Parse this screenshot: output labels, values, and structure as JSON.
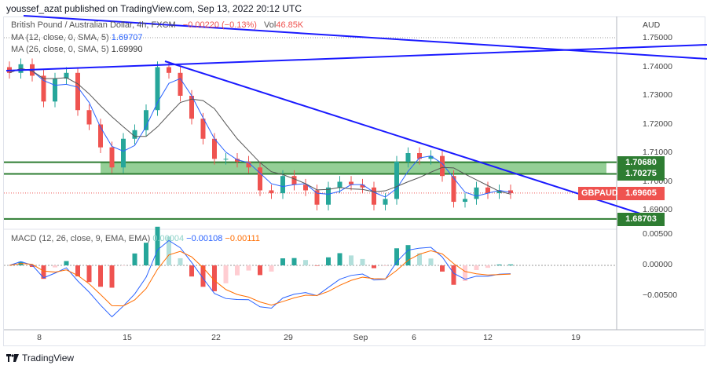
{
  "publisher_line": "youssef_azat published on TradingView.com, Sep 13, 2022 20:12 UTC",
  "legend": {
    "symbol": "British Pound / Australian Dollar, 4h, FXCM",
    "change": "−0.00220 (−0.13%)",
    "vol_label": "Vol",
    "vol": "46.85K",
    "ma1_label": "MA (12, close, 0, SMA, 5)",
    "ma1_value": "1.69707",
    "ma2_label": "MA (26, close, 0, SMA, 5)",
    "ma2_value": "1.69990",
    "macd_label": "MACD (12, 26, close, 9, EMA, EMA)",
    "macd_hist": "0.00004",
    "macd_line": "−0.00108",
    "macd_signal": "−0.00111"
  },
  "currency": "AUD",
  "price_ticks": [
    "1.75000",
    "1.74000",
    "1.73000",
    "1.72000",
    "1.71000",
    "1.70000",
    "1.69000"
  ],
  "macd_ticks": [
    "0.00500",
    "0.00000",
    "−0.00500"
  ],
  "time_ticks": [
    "8",
    "15",
    "22",
    "29",
    "Sep",
    "6",
    "12",
    "19"
  ],
  "levels": [
    {
      "label": "1.70680",
      "price": 1.7068
    },
    {
      "label": "1.70275",
      "price": 1.70275
    },
    {
      "label": "1.68703",
      "price": 1.68703
    }
  ],
  "last_price": {
    "symbol": "GBPAUD",
    "label": "1.69605",
    "price": 1.69605
  },
  "colors": {
    "up": "#26a69a",
    "down": "#ef5350",
    "ma1": "#2962ff",
    "ma2": "#555555",
    "trend": "#1a1aff",
    "zone": "#2e7d32",
    "zone_fill": "#81c784",
    "macd": "#2962ff",
    "signal": "#ff6d00"
  },
  "brand": "TradingView",
  "chart_data": {
    "type": "candlestick",
    "symbol": "GBPAUD",
    "interval": "4h",
    "ylim": [
      1.685,
      1.755
    ],
    "closes": [
      1.738,
      1.741,
      1.737,
      1.728,
      1.736,
      1.738,
      1.725,
      1.72,
      1.712,
      1.705,
      1.715,
      1.718,
      1.725,
      1.74,
      1.738,
      1.73,
      1.722,
      1.715,
      1.708,
      1.708,
      1.707,
      1.705,
      1.697,
      1.696,
      1.702,
      1.699,
      1.697,
      1.692,
      1.698,
      1.7,
      1.699,
      1.698,
      1.692,
      1.694,
      1.707,
      1.71,
      1.708,
      1.709,
      1.702,
      1.693,
      1.694,
      1.698,
      1.696,
      1.697,
      1.696
    ]
  }
}
